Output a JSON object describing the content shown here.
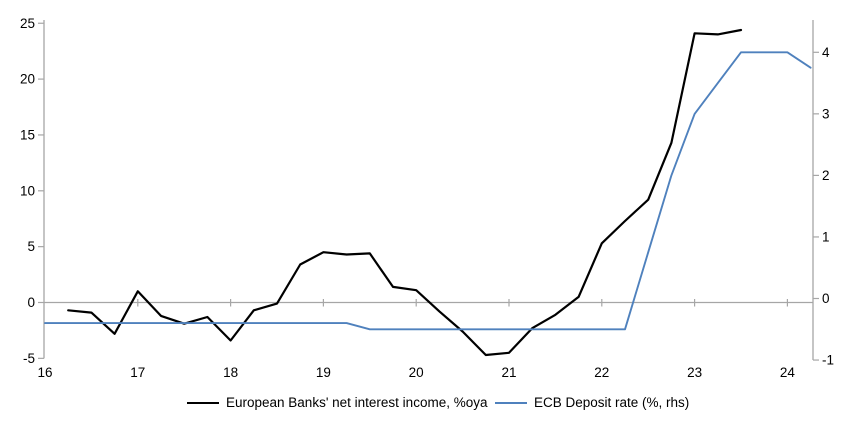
{
  "chart_data": {
    "type": "line",
    "title": "",
    "x_axis": {
      "tick_labels": [
        "16",
        "17",
        "18",
        "19",
        "20",
        "21",
        "22",
        "23",
        "24"
      ],
      "tick_values": [
        16,
        17,
        18,
        19,
        20,
        21,
        22,
        23,
        24
      ],
      "range": [
        16,
        24.3
      ],
      "gridline_tick_years": [
        17,
        18,
        19,
        20,
        21,
        22,
        23,
        24
      ]
    },
    "left_axis": {
      "ticks": [
        -5,
        0,
        5,
        10,
        15,
        20,
        25
      ],
      "range": [
        -5,
        25
      ]
    },
    "right_axis": {
      "ticks": [
        -1,
        0,
        1,
        2,
        3,
        4
      ],
      "range": [
        -1,
        4.35
      ]
    },
    "grid": "zero-line-only",
    "legend_position": "bottom",
    "series": [
      {
        "name": "European Banks' net interest income, %oya",
        "axis": "left",
        "color": "#000000",
        "width": 2.2,
        "x": [
          16.25,
          16.5,
          16.75,
          17,
          17.25,
          17.5,
          17.75,
          18,
          18.25,
          18.5,
          18.75,
          19,
          19.25,
          19.5,
          19.75,
          20,
          20.25,
          20.5,
          20.75,
          21,
          21.25,
          21.5,
          21.75,
          22,
          22.25,
          22.5,
          22.75,
          23,
          23.25,
          23.5
        ],
        "values": [
          -0.7,
          -0.9,
          -2.8,
          1.0,
          -1.2,
          -1.9,
          -1.3,
          -3.4,
          -0.7,
          -0.1,
          3.4,
          4.5,
          4.3,
          4.4,
          1.4,
          1.1,
          -0.8,
          -2.6,
          -4.7,
          -4.5,
          -2.3,
          -1.1,
          0.5,
          5.3,
          7.3,
          9.2,
          14.3,
          24.1,
          24.0,
          24.4
        ]
      },
      {
        "name": "ECB Deposit rate (%, rhs)",
        "axis": "right",
        "color": "#4f81bd",
        "width": 1.9,
        "x": [
          16,
          16.25,
          16.5,
          16.75,
          17,
          17.25,
          17.5,
          17.75,
          18,
          18.25,
          18.5,
          18.75,
          19,
          19.25,
          19.5,
          19.75,
          20,
          20.25,
          20.5,
          20.75,
          21,
          21.25,
          21.5,
          21.75,
          22,
          22.25,
          22.5,
          22.75,
          23,
          23.25,
          23.5,
          23.75,
          24,
          24.25
        ],
        "values": [
          -0.4,
          -0.4,
          -0.4,
          -0.4,
          -0.4,
          -0.4,
          -0.4,
          -0.4,
          -0.4,
          -0.4,
          -0.4,
          -0.4,
          -0.4,
          -0.4,
          -0.5,
          -0.5,
          -0.5,
          -0.5,
          -0.5,
          -0.5,
          -0.5,
          -0.5,
          -0.5,
          -0.5,
          -0.5,
          -0.5,
          0.75,
          2.0,
          3.0,
          3.5,
          4.0,
          4.0,
          4.0,
          3.75
        ]
      }
    ]
  },
  "legend": {
    "series1_label": "European Banks' net interest income, %oya",
    "series2_label": "ECB Deposit rate (%, rhs)"
  },
  "colors": {
    "series1": "#000000",
    "series2": "#4f81bd",
    "axis_line": "#a6a6a6",
    "zero_gridline": "#a6a6a6",
    "tick_text": "#000000",
    "background": "#ffffff"
  }
}
